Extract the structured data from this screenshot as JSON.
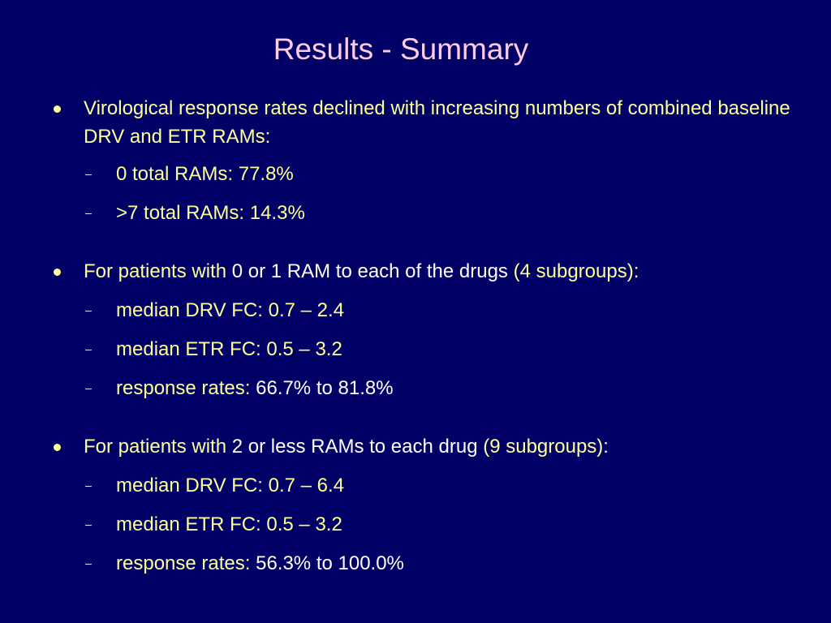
{
  "slide": {
    "title": "Results  - Summary",
    "bullet1": {
      "text": "Virological response rates declined with increasing numbers of combined baseline DRV and ETR RAMs:",
      "subs": [
        {
          "label": "0 total RAMs: 77.8%"
        },
        {
          "label": ">7 total RAMs: 14.3%"
        }
      ]
    },
    "bullet2": {
      "prefix": "For patients with ",
      "middle": "0 or 1 RAM to each of the drugs ",
      "suffix": "(4 subgroups):",
      "subs": [
        {
          "label": "median DRV FC: ",
          "value": "0.7 – 2.4"
        },
        {
          "label": "median ETR FC: ",
          "value": "0.5 – 3.2"
        },
        {
          "label": "response rates: ",
          "value": "66.7% to 81.8%"
        }
      ]
    },
    "bullet3": {
      "prefix": "For patients with ",
      "middle": "2 or less RAMs to each drug ",
      "suffix": "(9 subgroups):",
      "subs": [
        {
          "label": "median DRV FC: ",
          "value": "0.7 – 6.4"
        },
        {
          "label": "median ETR FC: ",
          "value": "0.5 – 3.2"
        },
        {
          "label": "response rates: ",
          "value": "56.3% to 100.0%"
        }
      ]
    },
    "colors": {
      "background": "#000066",
      "title": "#FFCCE6",
      "accent": "#FFFF99",
      "emphasis": "#FFFFFF"
    }
  }
}
